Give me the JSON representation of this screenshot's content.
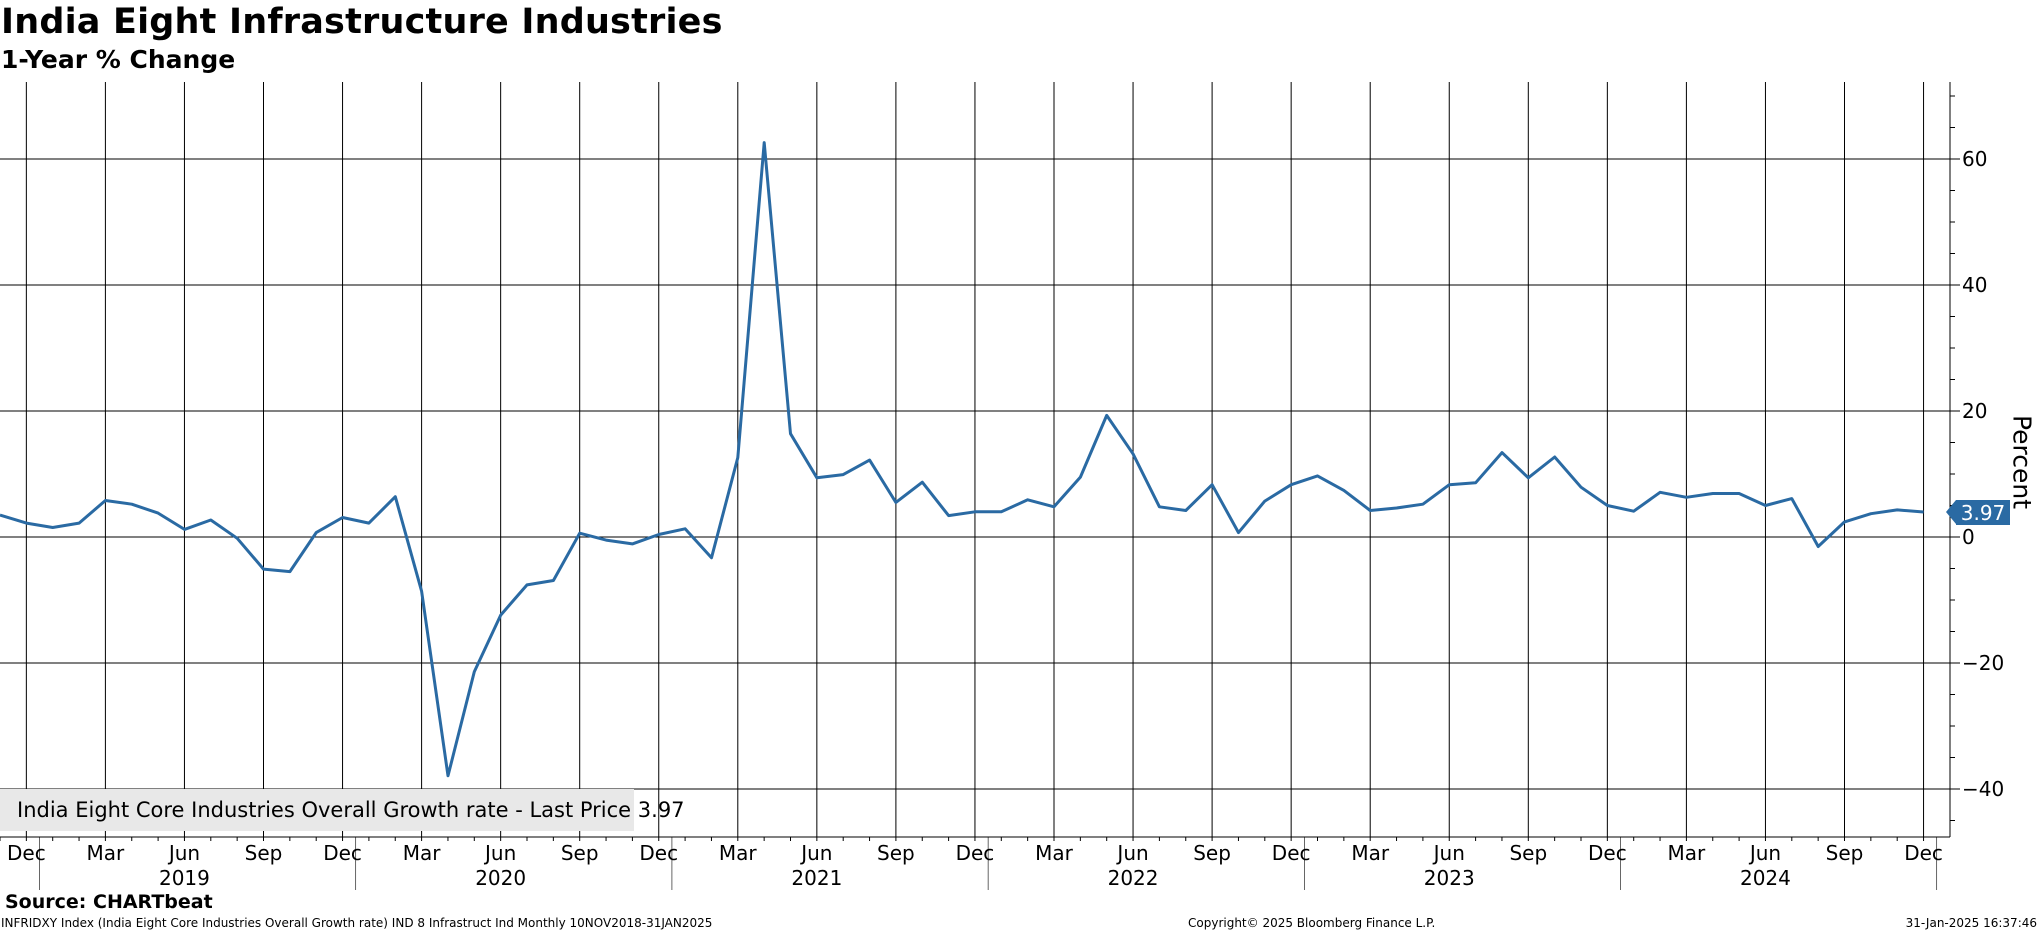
{
  "header": {
    "title": "India Eight Infrastructure Industries",
    "subtitle": "1-Year % Change"
  },
  "legend": {
    "series_label": "India Eight Core Industries Overall Growth rate - Last Price 3.97"
  },
  "last_value_label": "3.97",
  "source": "Source: CHARTbeat",
  "footer": {
    "left": "INFRIDXY Index (India Eight Core Industries Overall Growth rate) IND 8 Infrastruct Ind  Monthly 10NOV2018-31JAN2025",
    "middle": "Copyright© 2025 Bloomberg Finance L.P.",
    "right": "31-Jan-2025 16:37:46"
  },
  "colors": {
    "series": "#2a6aa3",
    "grid": "#000000"
  },
  "chart_data": {
    "type": "line",
    "title": "India Eight Infrastructure Industries",
    "subtitle": "1-Year % Change",
    "xlabel": "",
    "ylabel": "Percent",
    "ylim": [
      -48,
      72
    ],
    "yticks": [
      -40,
      -20,
      0,
      20,
      40,
      60
    ],
    "grid": true,
    "legend_position": "bottom-left",
    "x_month_ticks": [
      "Dec",
      "Mar",
      "Jun",
      "Sep",
      "Dec",
      "Mar",
      "Jun",
      "Sep",
      "Dec",
      "Mar",
      "Jun",
      "Sep",
      "Dec",
      "Mar",
      "Jun",
      "Sep",
      "Dec",
      "Mar",
      "Jun",
      "Sep",
      "Dec",
      "Mar",
      "Jun",
      "Sep",
      "Dec"
    ],
    "x_year_labels": [
      "2019",
      "2020",
      "2021",
      "2022",
      "2023",
      "2024"
    ],
    "series": [
      {
        "name": "India Eight Core Industries Overall Growth rate",
        "last_price": 3.97,
        "x": [
          "2018-11",
          "2018-12",
          "2019-01",
          "2019-02",
          "2019-03",
          "2019-04",
          "2019-05",
          "2019-06",
          "2019-07",
          "2019-08",
          "2019-09",
          "2019-10",
          "2019-11",
          "2019-12",
          "2020-01",
          "2020-02",
          "2020-03",
          "2020-04",
          "2020-05",
          "2020-06",
          "2020-07",
          "2020-08",
          "2020-09",
          "2020-10",
          "2020-11",
          "2020-12",
          "2021-01",
          "2021-02",
          "2021-03",
          "2021-04",
          "2021-05",
          "2021-06",
          "2021-07",
          "2021-08",
          "2021-09",
          "2021-10",
          "2021-11",
          "2021-12",
          "2022-01",
          "2022-02",
          "2022-03",
          "2022-04",
          "2022-05",
          "2022-06",
          "2022-07",
          "2022-08",
          "2022-09",
          "2022-10",
          "2022-11",
          "2022-12",
          "2023-01",
          "2023-02",
          "2023-03",
          "2023-04",
          "2023-05",
          "2023-06",
          "2023-07",
          "2023-08",
          "2023-09",
          "2023-10",
          "2023-11",
          "2023-12",
          "2024-01",
          "2024-02",
          "2024-03",
          "2024-04",
          "2024-05",
          "2024-06",
          "2024-07",
          "2024-08",
          "2024-09",
          "2024-10",
          "2024-11",
          "2024-12"
        ],
        "values": [
          3.5,
          2.2,
          1.5,
          2.2,
          5.8,
          5.2,
          3.8,
          1.2,
          2.7,
          -0.2,
          -5.1,
          -5.5,
          0.7,
          3.1,
          2.2,
          6.4,
          -8.6,
          -37.9,
          -21.4,
          -12.4,
          -7.6,
          -6.9,
          0.6,
          -0.5,
          -1.1,
          0.4,
          1.3,
          -3.3,
          12.6,
          62.6,
          16.4,
          9.4,
          9.9,
          12.2,
          5.5,
          8.7,
          3.4,
          4.0,
          4.0,
          5.9,
          4.8,
          9.5,
          19.3,
          13.2,
          4.8,
          4.2,
          8.3,
          0.7,
          5.7,
          8.3,
          9.7,
          7.4,
          4.2,
          4.6,
          5.2,
          8.3,
          8.6,
          13.4,
          9.4,
          12.7,
          7.9,
          5.0,
          4.1,
          7.1,
          6.3,
          6.9,
          6.9,
          5.0,
          6.1,
          -1.5,
          2.4,
          3.7,
          4.3,
          3.97
        ]
      }
    ]
  }
}
